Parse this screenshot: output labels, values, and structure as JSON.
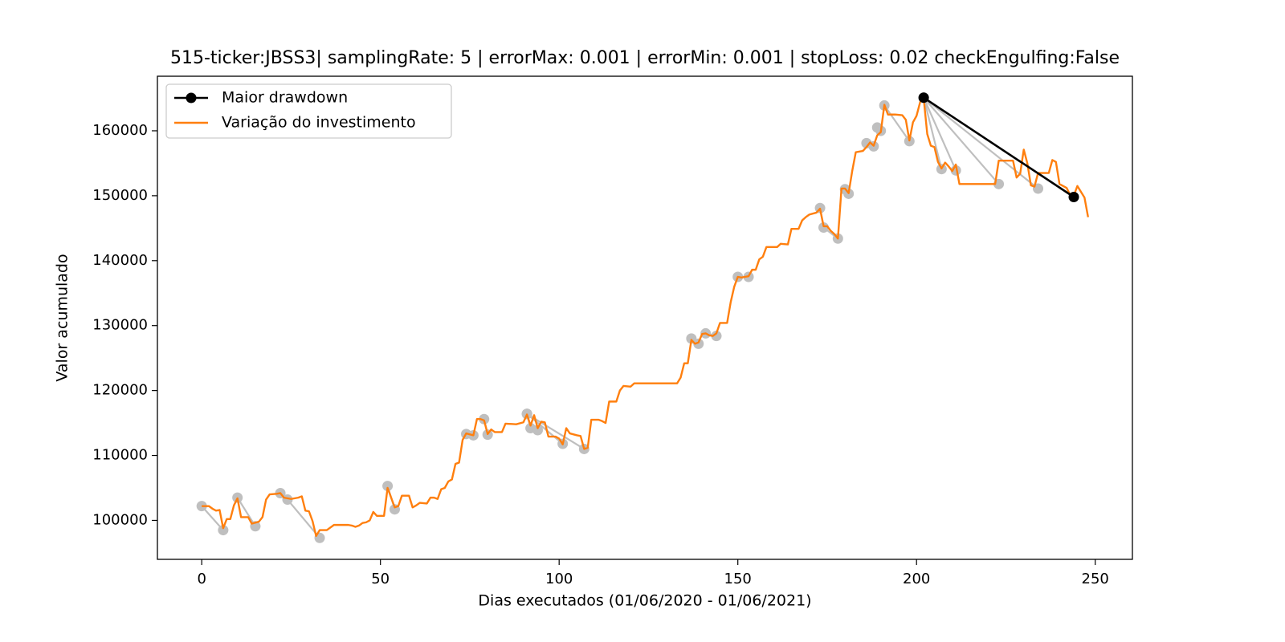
{
  "chart_data": {
    "type": "line",
    "title": "515-ticker:JBSS3| samplingRate: 5 | errorMax: 0.001 | errorMin: 0.001 | stopLoss: 0.02 checkEngulfing:False",
    "x_label": "Dias executados (01/06/2020 - 01/06/2021)",
    "y_label": "Valor acumulado",
    "xlim": [
      -12.4,
      260.4
    ],
    "ylim": [
      94000,
      168400
    ],
    "xticks": [
      0,
      50,
      100,
      150,
      200,
      250
    ],
    "yticks": [
      100000,
      110000,
      120000,
      130000,
      140000,
      150000,
      160000
    ],
    "legend": "upper left",
    "drawdown_points": {
      "color": "#bfbfbf",
      "x": [
        0,
        6,
        null,
        10,
        15,
        null,
        22,
        24,
        33,
        null,
        52,
        54,
        null,
        74,
        76,
        null,
        79,
        80,
        null,
        91,
        92,
        94,
        null,
        91,
        101,
        null,
        91,
        107,
        null,
        137,
        139,
        null,
        141,
        144,
        null,
        150,
        153,
        null,
        173,
        174,
        178,
        null,
        180,
        181,
        null,
        186,
        188,
        null,
        189,
        190,
        null,
        191,
        198,
        null,
        202,
        207,
        null,
        202,
        211,
        null,
        202,
        223,
        null,
        202,
        234
      ],
      "values": [
        102200,
        98500,
        null,
        103500,
        99100,
        null,
        104200,
        103200,
        97300,
        null,
        105300,
        101700,
        null,
        113300,
        113100,
        null,
        115600,
        113200,
        null,
        116400,
        114200,
        113900,
        null,
        116400,
        111800,
        null,
        116400,
        111000,
        null,
        128000,
        127200,
        null,
        128800,
        128400,
        null,
        137500,
        137500,
        null,
        148100,
        145100,
        143400,
        null,
        151000,
        150300,
        null,
        158100,
        157600,
        null,
        160500,
        160000,
        null,
        163900,
        158400,
        null,
        165100,
        154100,
        null,
        165100,
        153900,
        null,
        165100,
        151800,
        null,
        165100,
        151100
      ]
    },
    "series": [
      {
        "name": "Variação do investimento",
        "color": "#ff7f0e",
        "x": [
          0,
          2,
          3,
          4,
          5,
          6,
          7,
          8,
          9,
          10,
          11,
          13,
          14,
          16,
          17,
          18,
          19,
          21,
          22,
          23,
          25,
          27,
          28,
          29,
          30,
          31,
          32,
          33,
          35,
          37,
          41,
          42,
          43,
          44,
          45,
          46,
          47,
          48,
          49,
          51,
          52,
          54,
          55,
          56,
          58,
          59,
          60,
          61,
          63,
          64,
          65,
          66,
          67,
          68,
          69,
          70,
          71,
          72,
          73,
          74,
          76,
          77,
          78,
          79,
          80,
          81,
          82,
          84,
          85,
          88,
          90,
          91,
          92,
          93,
          94,
          95,
          96,
          97,
          99,
          100,
          101,
          102,
          103,
          105,
          106,
          107,
          108,
          109,
          111,
          112,
          113,
          114,
          116,
          117,
          118,
          120,
          121,
          133,
          134,
          135,
          136,
          137,
          138,
          139,
          140,
          141,
          142,
          143,
          144,
          145,
          147,
          148,
          149,
          150,
          151,
          153,
          154,
          155,
          156,
          157,
          158,
          161,
          162,
          164,
          165,
          167,
          168,
          169,
          170,
          172,
          173,
          174,
          175,
          176,
          177,
          178,
          179,
          180,
          181,
          182,
          183,
          185,
          186,
          187,
          188,
          189,
          190,
          191,
          192,
          194,
          196,
          197,
          198,
          199,
          200,
          201,
          202,
          203,
          204,
          205,
          206,
          207,
          208,
          209,
          210,
          211,
          212,
          222,
          223,
          227,
          228,
          229,
          230,
          231,
          232,
          233,
          234,
          237,
          238,
          239,
          240,
          242,
          243,
          244,
          245,
          247,
          248
        ],
        "values": [
          102200,
          102200,
          101800,
          101500,
          101600,
          98800,
          100200,
          100200,
          102300,
          103400,
          100500,
          100500,
          99500,
          99800,
          100500,
          103200,
          104000,
          104100,
          104200,
          103500,
          103300,
          103500,
          103700,
          101500,
          101400,
          99900,
          97600,
          98500,
          98500,
          99300,
          99300,
          99200,
          99000,
          99200,
          99600,
          99700,
          100000,
          101300,
          100700,
          100700,
          105000,
          102000,
          102200,
          103800,
          103800,
          102000,
          102300,
          102700,
          102600,
          103500,
          103500,
          103300,
          104800,
          105000,
          106000,
          106300,
          108700,
          108900,
          112400,
          113400,
          113100,
          115600,
          115600,
          115400,
          113300,
          114000,
          113600,
          113600,
          114900,
          114800,
          115100,
          116300,
          114600,
          116200,
          114200,
          115200,
          115100,
          112900,
          112900,
          112600,
          111700,
          114200,
          113400,
          113100,
          113000,
          111000,
          111200,
          115500,
          115500,
          115300,
          115000,
          118300,
          118300,
          120000,
          120700,
          120600,
          121100,
          121100,
          122000,
          124200,
          124200,
          127800,
          127200,
          127400,
          128700,
          128800,
          128500,
          128400,
          128800,
          130400,
          130400,
          133600,
          136000,
          137500,
          137400,
          137600,
          138600,
          138600,
          140200,
          140600,
          142100,
          142100,
          142600,
          142500,
          144900,
          144900,
          146200,
          146700,
          147100,
          147400,
          148000,
          145300,
          145300,
          144600,
          144100,
          143400,
          151100,
          151100,
          150400,
          153800,
          156700,
          156900,
          157500,
          158200,
          157700,
          159300,
          159800,
          164000,
          162500,
          162500,
          162400,
          161700,
          158500,
          161300,
          162300,
          164400,
          165000,
          159500,
          157700,
          157500,
          155200,
          154200,
          155100,
          154500,
          153800,
          154800,
          151800,
          151800,
          155400,
          155400,
          152800,
          153400,
          157100,
          155000,
          151600,
          151400,
          153500,
          153500,
          155500,
          155200,
          151800,
          151200,
          150100,
          150000,
          151500,
          149700,
          146700
        ]
      },
      {
        "name": "Maior drawdown",
        "color": "#000000",
        "marker": true,
        "x": [
          202,
          244
        ],
        "values": [
          165100,
          149800
        ]
      }
    ]
  }
}
